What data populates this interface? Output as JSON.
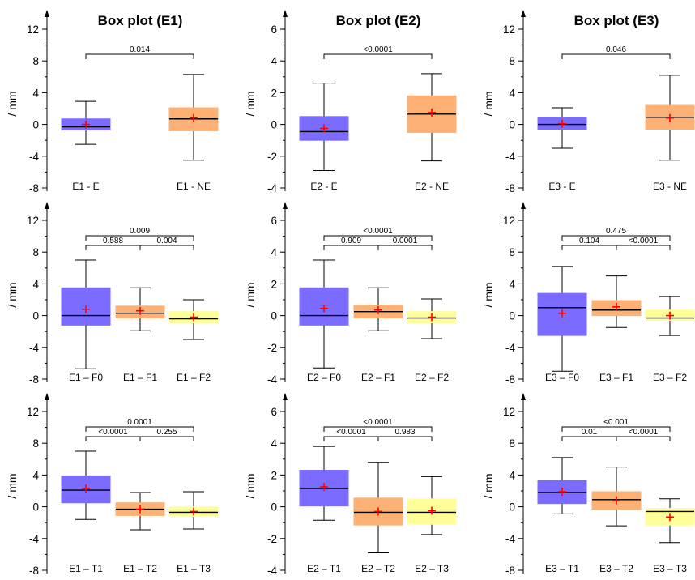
{
  "figure": {
    "ylabel": "/ mm",
    "colors": {
      "E": "#7b6cff",
      "NE": "#fdb174",
      "F0": "#7b6cff",
      "F1": "#fdb174",
      "F2": "#ffff99",
      "T1": "#7b6cff",
      "T2": "#fdb174",
      "T3": "#ffff99",
      "mean": "#ff0000",
      "axis": "#000000"
    }
  },
  "chart_data": [
    {
      "type": "box",
      "title": "Box plot (E1)",
      "ylabel": "/ mm",
      "ylim": [
        -8,
        14
      ],
      "yticks": [
        -8,
        -4,
        0,
        4,
        8,
        12
      ],
      "grid": false,
      "categories": [
        "E1 - E",
        "E1 - NE"
      ],
      "groups": [
        "E",
        "NE"
      ],
      "boxes": [
        {
          "whisker_low": -2.5,
          "q1": -0.7,
          "median": -0.3,
          "q3": 0.7,
          "whisker_high": 2.9,
          "mean": 0.0
        },
        {
          "whisker_low": -4.5,
          "q1": -0.8,
          "median": 0.7,
          "q3": 2.1,
          "whisker_high": 6.3,
          "mean": 0.8
        }
      ],
      "comparisons": [
        {
          "between": [
            0,
            1
          ],
          "p": "0.014"
        }
      ]
    },
    {
      "type": "box",
      "title": "Box plot (E2)",
      "ylabel": "/ mm",
      "ylim": [
        -4,
        7
      ],
      "yticks": [
        -4,
        -2,
        0,
        2,
        4,
        6
      ],
      "grid": false,
      "categories": [
        "E2 - E",
        "E2 - NE"
      ],
      "groups": [
        "E",
        "NE"
      ],
      "boxes": [
        {
          "whisker_low": -2.9,
          "q1": -1.0,
          "median": -0.45,
          "q3": 0.5,
          "whisker_high": 2.6,
          "mean": -0.25
        },
        {
          "whisker_low": -2.3,
          "q1": -0.5,
          "median": 0.65,
          "q3": 1.8,
          "whisker_high": 3.2,
          "mean": 0.75
        }
      ],
      "comparisons": [
        {
          "between": [
            0,
            1
          ],
          "p": "<0.0001"
        }
      ]
    },
    {
      "type": "box",
      "title": "Box plot (E3)",
      "ylabel": "/ mm",
      "ylim": [
        -8,
        14
      ],
      "yticks": [
        -8,
        -4,
        0,
        4,
        8,
        12
      ],
      "grid": false,
      "categories": [
        "E3 - E",
        "E3 - NE"
      ],
      "groups": [
        "E",
        "NE"
      ],
      "boxes": [
        {
          "whisker_low": -3.0,
          "q1": -0.6,
          "median": 0.0,
          "q3": 0.9,
          "whisker_high": 2.1,
          "mean": 0.1
        },
        {
          "whisker_low": -4.5,
          "q1": -0.6,
          "median": 0.9,
          "q3": 2.4,
          "whisker_high": 6.2,
          "mean": 0.8
        }
      ],
      "comparisons": [
        {
          "between": [
            0,
            1
          ],
          "p": "0.046"
        }
      ]
    },
    {
      "type": "box",
      "title": "",
      "ylabel": "/ mm",
      "ylim": [
        -8,
        14
      ],
      "yticks": [
        -8,
        -4,
        0,
        4,
        8,
        12
      ],
      "grid": false,
      "categories": [
        "E1 – F0",
        "E1 – F1",
        "E1 – F2"
      ],
      "groups": [
        "F0",
        "F1",
        "F2"
      ],
      "boxes": [
        {
          "whisker_low": -6.7,
          "q1": -1.2,
          "median": 0.0,
          "q3": 3.5,
          "whisker_high": 7.0,
          "mean": 0.8
        },
        {
          "whisker_low": -1.9,
          "q1": -0.3,
          "median": 0.3,
          "q3": 1.2,
          "whisker_high": 3.5,
          "mean": 0.6
        },
        {
          "whisker_low": -3.0,
          "q1": -0.9,
          "median": -0.4,
          "q3": 0.5,
          "whisker_high": 2.0,
          "mean": -0.2
        }
      ],
      "comparisons": [
        {
          "between": [
            0,
            2
          ],
          "p": "0.009"
        },
        {
          "between": [
            0,
            1
          ],
          "p": "0.588"
        },
        {
          "between": [
            1,
            2
          ],
          "p": "0.004"
        }
      ]
    },
    {
      "type": "box",
      "title": "",
      "ylabel": "/ mm",
      "ylim": [
        -4,
        7
      ],
      "yticks": [
        -4,
        -2,
        0,
        2,
        4,
        6
      ],
      "grid": false,
      "categories": [
        "E2 – F0",
        "E2 – F1",
        "E2 – F2"
      ],
      "groups": [
        "F0",
        "F1",
        "F2"
      ],
      "boxes": [
        {
          "whisker_low": -3.3,
          "q1": -0.6,
          "median": 0.0,
          "q3": 1.75,
          "whisker_high": 3.5,
          "mean": 0.45
        },
        {
          "whisker_low": -0.95,
          "q1": -0.15,
          "median": 0.25,
          "q3": 0.65,
          "whisker_high": 1.75,
          "mean": 0.35
        },
        {
          "whisker_low": -1.45,
          "q1": -0.45,
          "median": -0.15,
          "q3": 0.25,
          "whisker_high": 1.05,
          "mean": -0.1
        }
      ],
      "comparisons": [
        {
          "between": [
            0,
            2
          ],
          "p": "<0.0001"
        },
        {
          "between": [
            0,
            1
          ],
          "p": "0.909"
        },
        {
          "between": [
            1,
            2
          ],
          "p": "0.0001"
        }
      ]
    },
    {
      "type": "box",
      "title": "",
      "ylabel": "/ mm",
      "ylim": [
        -8,
        14
      ],
      "yticks": [
        -8,
        -4,
        0,
        4,
        8,
        12
      ],
      "grid": false,
      "categories": [
        "E3 – F0",
        "E3 – F1",
        "E3 – F2"
      ],
      "groups": [
        "F0",
        "F1",
        "F2"
      ],
      "boxes": [
        {
          "whisker_low": -7.0,
          "q1": -2.5,
          "median": 1.0,
          "q3": 2.8,
          "whisker_high": 6.2,
          "mean": 0.3
        },
        {
          "whisker_low": -1.5,
          "q1": 0.0,
          "median": 0.7,
          "q3": 1.9,
          "whisker_high": 5.0,
          "mean": 1.1
        },
        {
          "whisker_low": -2.5,
          "q1": -0.6,
          "median": -0.3,
          "q3": 0.7,
          "whisker_high": 2.4,
          "mean": 0.0
        }
      ],
      "comparisons": [
        {
          "between": [
            0,
            2
          ],
          "p": "0.475"
        },
        {
          "between": [
            0,
            1
          ],
          "p": "0.104"
        },
        {
          "between": [
            1,
            2
          ],
          "p": "<0.0001"
        }
      ]
    },
    {
      "type": "box",
      "title": "",
      "ylabel": "/ mm",
      "ylim": [
        -8,
        14
      ],
      "yticks": [
        -8,
        -4,
        0,
        4,
        8,
        12
      ],
      "grid": false,
      "categories": [
        "E1 – T1",
        "E1 – T2",
        "E1 – T3"
      ],
      "groups": [
        "T1",
        "T2",
        "T3"
      ],
      "boxes": [
        {
          "whisker_low": -1.6,
          "q1": 0.5,
          "median": 2.1,
          "q3": 3.9,
          "whisker_high": 7.0,
          "mean": 2.3
        },
        {
          "whisker_low": -2.9,
          "q1": -1.1,
          "median": -0.3,
          "q3": 0.5,
          "whisker_high": 1.8,
          "mean": -0.3
        },
        {
          "whisker_low": -2.8,
          "q1": -1.2,
          "median": -0.7,
          "q3": 0.0,
          "whisker_high": 1.9,
          "mean": -0.6
        }
      ],
      "comparisons": [
        {
          "between": [
            0,
            2
          ],
          "p": "0.0001"
        },
        {
          "between": [
            0,
            1
          ],
          "p": "<0.0001"
        },
        {
          "between": [
            1,
            2
          ],
          "p": "0.255"
        }
      ]
    },
    {
      "type": "box",
      "title": "",
      "ylabel": "/ mm",
      "ylim": [
        -4,
        7
      ],
      "yticks": [
        -4,
        -2,
        0,
        2,
        4,
        6
      ],
      "grid": false,
      "categories": [
        "E2 – T1",
        "E2 – T2",
        "E2 – T3"
      ],
      "groups": [
        "T1",
        "T2",
        "T3"
      ],
      "boxes": [
        {
          "whisker_low": -0.85,
          "q1": 0.05,
          "median": 1.15,
          "q3": 2.3,
          "whisker_high": 3.8,
          "mean": 1.25
        },
        {
          "whisker_low": -2.9,
          "q1": -1.15,
          "median": -0.35,
          "q3": 0.55,
          "whisker_high": 2.8,
          "mean": -0.3
        },
        {
          "whisker_low": -1.75,
          "q1": -1.1,
          "median": -0.35,
          "q3": 0.5,
          "whisker_high": 1.9,
          "mean": -0.25
        }
      ],
      "comparisons": [
        {
          "between": [
            0,
            2
          ],
          "p": "<0.0001"
        },
        {
          "between": [
            0,
            1
          ],
          "p": "<0.0001"
        },
        {
          "between": [
            1,
            2
          ],
          "p": "0.983"
        }
      ]
    },
    {
      "type": "box",
      "title": "",
      "ylabel": "/ mm",
      "ylim": [
        -8,
        14
      ],
      "yticks": [
        -8,
        -4,
        0,
        4,
        8,
        12
      ],
      "grid": false,
      "categories": [
        "E3 – T1",
        "E3 – T2",
        "E3 – T3"
      ],
      "groups": [
        "T1",
        "T2",
        "T3"
      ],
      "boxes": [
        {
          "whisker_low": -0.9,
          "q1": 0.4,
          "median": 1.8,
          "q3": 3.3,
          "whisker_high": 6.2,
          "mean": 1.9
        },
        {
          "whisker_low": -2.4,
          "q1": -0.3,
          "median": 0.9,
          "q3": 1.9,
          "whisker_high": 5.0,
          "mean": 0.8
        },
        {
          "whisker_low": -4.5,
          "q1": -2.3,
          "median": -0.6,
          "q3": -0.2,
          "whisker_high": 1.0,
          "mean": -1.3
        }
      ],
      "comparisons": [
        {
          "between": [
            0,
            2
          ],
          "p": "<0.001"
        },
        {
          "between": [
            0,
            1
          ],
          "p": "0.01"
        },
        {
          "between": [
            1,
            2
          ],
          "p": "<0.0001"
        }
      ]
    }
  ]
}
